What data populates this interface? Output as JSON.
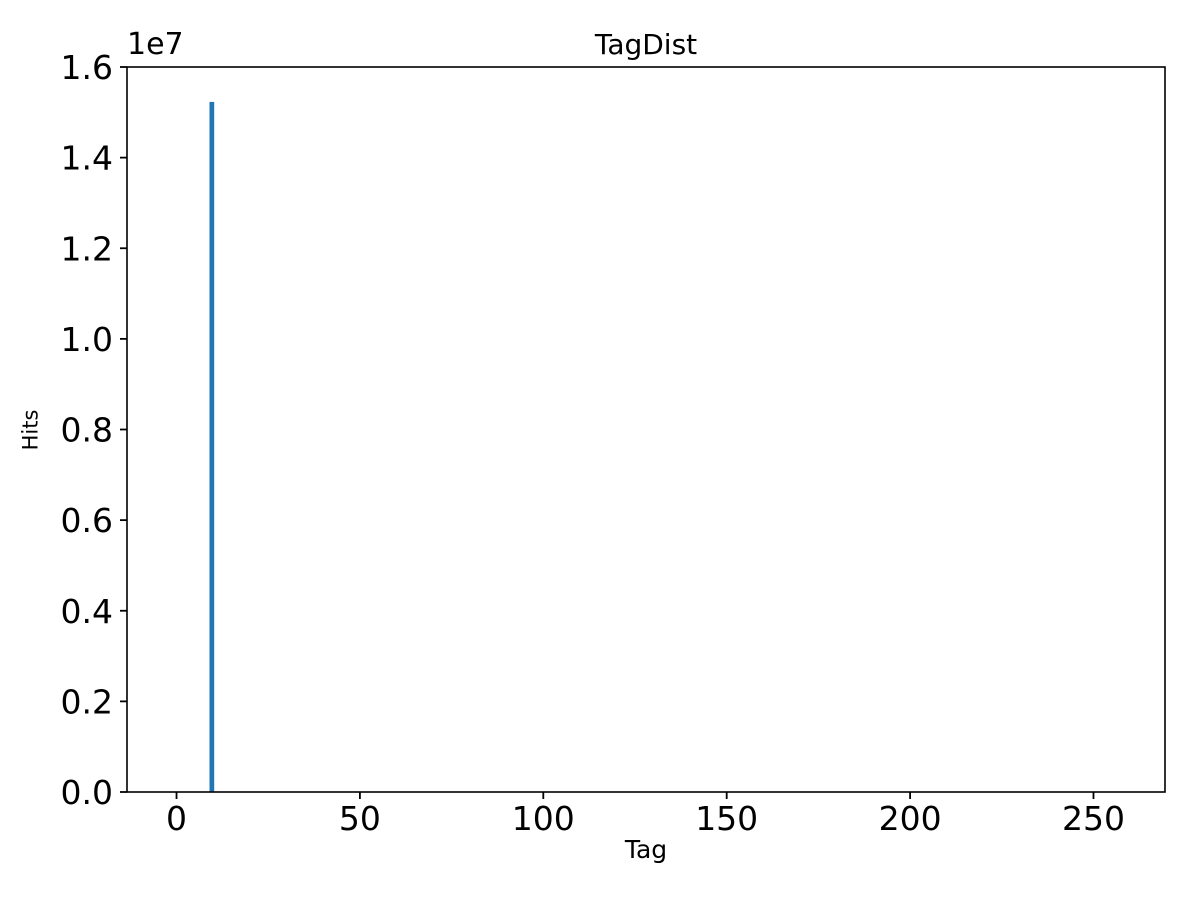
{
  "chart_data": {
    "type": "bar",
    "title": "TagDist",
    "xlabel": "Tag",
    "ylabel": "Hits",
    "y_axis_offset_label": "1e7",
    "grid": false,
    "axis_color": "#000000",
    "text_color": "#000000",
    "background_color": "#ffffff",
    "bar_color": "#1f77b4",
    "xlim": [
      -13.5,
      269.5
    ],
    "ylim": [
      0,
      16000000
    ],
    "x_ticks": [
      0,
      50,
      100,
      150,
      200,
      250
    ],
    "y_ticks": [
      {
        "value": 0,
        "label": "0.0"
      },
      {
        "value": 2000000,
        "label": "0.2"
      },
      {
        "value": 4000000,
        "label": "0.4"
      },
      {
        "value": 6000000,
        "label": "0.6"
      },
      {
        "value": 8000000,
        "label": "0.8"
      },
      {
        "value": 10000000,
        "label": "1.0"
      },
      {
        "value": 12000000,
        "label": "1.2"
      },
      {
        "value": 14000000,
        "label": "1.4"
      },
      {
        "value": 16000000,
        "label": "1.6"
      }
    ],
    "bin_width": 1,
    "bars": [
      {
        "x": 9,
        "hits": 15230000
      }
    ]
  }
}
